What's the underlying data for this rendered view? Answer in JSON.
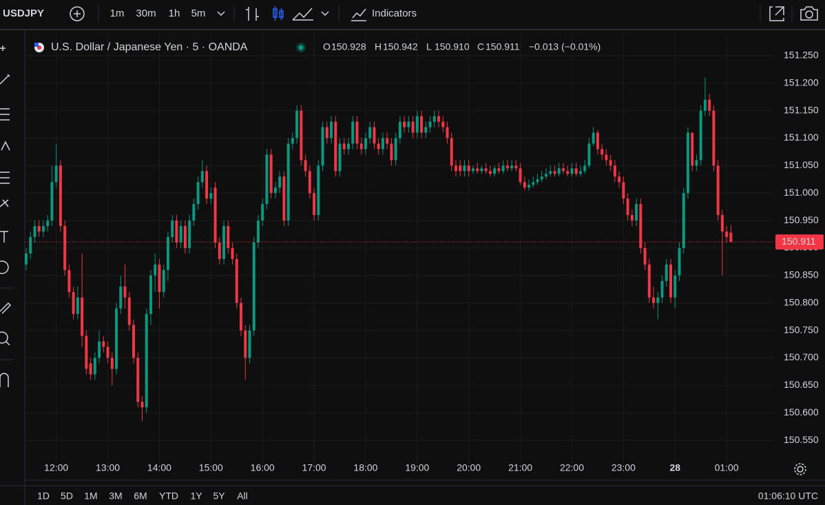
{
  "toolbar": {
    "symbol": "USDJPY",
    "intervals": [
      "1m",
      "30m",
      "1h",
      "5m"
    ],
    "indicators": "Indicators"
  },
  "legend": {
    "title": "U.S. Dollar / Japanese Yen · 5 · OANDA",
    "ohlc": [
      {
        "letter": "O",
        "value": "150.928"
      },
      {
        "letter": "H",
        "value": "150.942"
      },
      {
        "letter": "L",
        "value": "150.910"
      },
      {
        "letter": "C",
        "value": "150.911"
      }
    ],
    "change": "−0.013 (−0.01%)"
  },
  "chart_data": {
    "type": "candlestick",
    "x": [
      "11:25",
      "11:30",
      "11:35",
      "11:40",
      "11:45",
      "11:50",
      "11:55",
      "12:00",
      "12:05",
      "12:10",
      "12:15",
      "12:20",
      "12:25",
      "12:30",
      "12:35",
      "12:40",
      "12:45",
      "12:50",
      "12:55",
      "13:00",
      "13:05",
      "13:10",
      "13:15",
      "13:20",
      "13:25",
      "13:30",
      "13:35",
      "13:40",
      "13:45",
      "13:50",
      "13:55",
      "14:00",
      "14:05",
      "14:10",
      "14:15",
      "14:20",
      "14:25",
      "14:30",
      "14:35",
      "14:40",
      "14:45",
      "14:50",
      "14:55",
      "15:00",
      "15:05",
      "15:10",
      "15:15",
      "15:20",
      "15:25",
      "15:30",
      "15:35",
      "15:40",
      "15:45",
      "15:50",
      "15:55",
      "16:00",
      "16:05",
      "16:10",
      "16:15",
      "16:20",
      "16:25",
      "16:30",
      "16:35",
      "16:40",
      "16:45",
      "16:50",
      "16:55",
      "17:00",
      "17:05",
      "17:10",
      "17:15",
      "17:20",
      "17:25",
      "17:30",
      "17:35",
      "17:40",
      "17:45",
      "17:50",
      "17:55",
      "18:00",
      "18:05",
      "18:10",
      "18:15",
      "18:20",
      "18:25",
      "18:30",
      "18:35",
      "18:40",
      "18:45",
      "18:50",
      "18:55",
      "19:00",
      "19:05",
      "19:10",
      "19:15",
      "19:20",
      "19:25",
      "19:30",
      "19:35",
      "19:40",
      "19:45",
      "19:50",
      "19:55",
      "20:00",
      "20:05",
      "20:10",
      "20:15",
      "20:20",
      "20:25",
      "20:30",
      "20:35",
      "20:40",
      "20:45",
      "20:50",
      "20:55",
      "21:00",
      "21:05",
      "21:10",
      "21:15",
      "21:20",
      "21:25",
      "21:30",
      "21:35",
      "21:40",
      "21:45",
      "21:50",
      "21:55",
      "22:00",
      "22:05",
      "22:10",
      "22:15",
      "22:20",
      "22:25",
      "22:30",
      "22:35",
      "22:40",
      "22:45",
      "22:50",
      "22:55",
      "23:00",
      "23:05",
      "23:10",
      "23:15",
      "23:20",
      "23:25",
      "23:30",
      "23:35",
      "23:40",
      "23:45",
      "23:50",
      "23:55",
      "00:00",
      "00:05",
      "00:10",
      "00:15",
      "00:20",
      "00:25",
      "00:30",
      "00:35",
      "00:40",
      "00:45",
      "00:50",
      "00:55",
      "01:00",
      "01:05"
    ],
    "open": [
      150.87,
      150.89,
      150.92,
      150.94,
      150.93,
      150.94,
      150.95,
      151.02,
      151.05,
      150.94,
      150.86,
      150.82,
      150.78,
      150.81,
      150.74,
      150.69,
      150.67,
      150.7,
      150.73,
      150.72,
      150.7,
      150.68,
      150.79,
      150.83,
      150.81,
      150.76,
      150.7,
      150.62,
      150.61,
      150.78,
      150.85,
      150.87,
      150.82,
      150.86,
      150.92,
      150.95,
      150.91,
      150.94,
      150.9,
      150.95,
      150.98,
      151.02,
      151.04,
      150.99,
      151.01,
      150.91,
      150.88,
      150.94,
      150.9,
      150.88,
      150.8,
      150.75,
      150.7,
      150.75,
      150.91,
      150.95,
      150.98,
      151.07,
      151.0,
      151.01,
      151.03,
      150.95,
      151.09,
      151.1,
      151.15,
      151.06,
      151.04,
      151.0,
      150.96,
      151.05,
      151.12,
      151.1,
      151.13,
      151.04,
      151.09,
      151.08,
      151.09,
      151.13,
      151.09,
      151.08,
      151.1,
      151.12,
      151.09,
      151.08,
      151.1,
      151.09,
      151.06,
      151.1,
      151.13,
      151.12,
      151.13,
      151.11,
      151.14,
      151.11,
      151.12,
      151.13,
      151.14,
      151.13,
      151.12,
      151.1,
      151.05,
      151.05,
      151.04,
      151.05,
      151.04,
      151.045,
      151.04,
      151.045,
      151.04,
      151.035,
      151.045,
      151.04,
      151.05,
      151.045,
      151.05,
      151.045,
      151.02,
      151.01,
      151.015,
      151.02,
      151.025,
      151.03,
      151.035,
      151.04,
      151.035,
      151.045,
      151.04,
      151.035,
      151.045,
      151.035,
      151.04,
      151.05,
      151.09,
      151.11,
      151.08,
      151.07,
      151.06,
      151.05,
      151.03,
      151.02,
      150.99,
      150.96,
      150.95,
      150.98,
      150.9,
      150.87,
      150.81,
      150.8,
      150.81,
      150.84,
      150.87,
      150.81,
      150.85,
      150.9,
      151.0,
      151.11,
      151.05,
      151.06,
      151.15,
      151.17,
      151.15,
      151.05,
      150.96,
      150.93,
      150.928
    ],
    "high": [
      150.9,
      150.93,
      150.95,
      150.95,
      150.95,
      150.96,
      151.05,
      151.09,
      151.06,
      150.95,
      150.87,
      150.83,
      150.83,
      150.89,
      150.75,
      150.7,
      150.71,
      150.75,
      150.74,
      150.73,
      150.71,
      150.8,
      150.85,
      150.87,
      150.82,
      150.77,
      150.71,
      150.63,
      150.79,
      150.86,
      150.89,
      150.88,
      150.87,
      150.93,
      150.96,
      150.96,
      150.95,
      150.95,
      150.96,
      150.99,
      151.03,
      151.06,
      151.05,
      151.01,
      151.02,
      150.92,
      150.95,
      150.95,
      150.91,
      150.89,
      150.81,
      150.76,
      150.76,
      150.92,
      150.96,
      150.99,
      151.08,
      151.08,
      151.02,
      151.04,
      151.04,
      151.1,
      151.11,
      151.16,
      151.16,
      151.07,
      151.05,
      151.01,
      151.06,
      151.13,
      151.13,
      151.14,
      151.14,
      151.1,
      151.1,
      151.1,
      151.14,
      151.14,
      151.1,
      151.11,
      151.13,
      151.13,
      151.1,
      151.11,
      151.11,
      151.1,
      151.11,
      151.14,
      151.14,
      151.14,
      151.14,
      151.15,
      151.15,
      151.13,
      151.14,
      151.15,
      151.15,
      151.14,
      151.13,
      151.11,
      151.06,
      151.06,
      151.06,
      151.06,
      151.05,
      151.055,
      151.05,
      151.055,
      151.05,
      151.05,
      151.055,
      151.06,
      151.06,
      151.06,
      151.06,
      151.055,
      151.03,
      151.025,
      151.03,
      151.035,
      151.04,
      151.045,
      151.05,
      151.05,
      151.055,
      151.055,
      151.05,
      151.055,
      151.055,
      151.05,
      151.06,
      151.1,
      151.12,
      151.115,
      151.09,
      151.08,
      151.07,
      151.06,
      151.04,
      151.03,
      151.0,
      150.97,
      150.99,
      150.99,
      150.91,
      150.88,
      150.83,
      150.82,
      150.85,
      150.88,
      150.88,
      150.86,
      150.91,
      151.01,
      151.12,
      151.11,
      151.07,
      151.16,
      151.21,
      151.18,
      151.16,
      151.06,
      150.97,
      150.94,
      150.942
    ],
    "low": [
      150.86,
      150.88,
      150.91,
      150.92,
      150.92,
      150.93,
      150.94,
      151.01,
      150.93,
      150.85,
      150.81,
      150.77,
      150.77,
      150.72,
      150.67,
      150.66,
      150.66,
      150.69,
      150.71,
      150.69,
      150.65,
      150.67,
      150.78,
      150.79,
      150.75,
      150.69,
      150.61,
      150.585,
      150.6,
      150.76,
      150.82,
      150.79,
      150.81,
      150.84,
      150.91,
      150.9,
      150.9,
      150.89,
      150.89,
      150.94,
      150.97,
      151.01,
      150.98,
      150.98,
      150.9,
      150.87,
      150.87,
      150.89,
      150.87,
      150.79,
      150.74,
      150.66,
      150.69,
      150.74,
      150.9,
      150.94,
      150.97,
      150.99,
      150.99,
      151.0,
      150.94,
      150.94,
      151.08,
      151.09,
      151.05,
      151.03,
      150.99,
      150.95,
      150.95,
      151.04,
      151.09,
      151.09,
      151.03,
      151.03,
      151.07,
      151.07,
      151.08,
      151.08,
      151.07,
      151.07,
      151.09,
      151.08,
      151.07,
      151.07,
      151.08,
      151.05,
      151.05,
      151.09,
      151.11,
      151.11,
      151.1,
      151.1,
      151.1,
      151.1,
      151.11,
      151.12,
      151.12,
      151.11,
      151.09,
      151.04,
      151.03,
      151.03,
      151.03,
      151.03,
      151.035,
      151.035,
      151.035,
      151.035,
      151.03,
      151.03,
      151.035,
      151.035,
      151.04,
      151.04,
      151.04,
      151.015,
      151.005,
      151.005,
      151.01,
      151.015,
      151.02,
      151.025,
      151.03,
      151.03,
      151.03,
      151.035,
      151.03,
      151.03,
      151.03,
      151.03,
      151.035,
      151.045,
      151.085,
      151.07,
      151.06,
      151.05,
      151.04,
      151.02,
      151.01,
      150.98,
      150.95,
      150.94,
      150.94,
      150.89,
      150.86,
      150.8,
      150.79,
      150.77,
      150.8,
      150.83,
      150.8,
      150.79,
      150.84,
      150.89,
      150.99,
      151.04,
      151.04,
      151.05,
      151.14,
      151.14,
      151.04,
      150.95,
      150.85,
      150.91,
      150.91
    ],
    "close": [
      150.89,
      150.92,
      150.94,
      150.93,
      150.94,
      150.95,
      151.02,
      151.05,
      150.94,
      150.86,
      150.82,
      150.78,
      150.81,
      150.74,
      150.68,
      150.67,
      150.7,
      150.73,
      150.72,
      150.7,
      150.68,
      150.79,
      150.83,
      150.81,
      150.76,
      150.7,
      150.62,
      150.61,
      150.78,
      150.85,
      150.87,
      150.82,
      150.86,
      150.92,
      150.95,
      150.91,
      150.94,
      150.9,
      150.95,
      150.98,
      151.02,
      151.04,
      150.99,
      151.0,
      150.91,
      150.88,
      150.94,
      150.9,
      150.88,
      150.8,
      150.75,
      150.7,
      150.75,
      150.91,
      150.95,
      150.98,
      151.07,
      151.0,
      151.01,
      151.03,
      150.95,
      151.09,
      151.1,
      151.15,
      151.06,
      151.04,
      151.0,
      150.96,
      151.05,
      151.12,
      151.1,
      151.13,
      151.04,
      151.09,
      151.08,
      151.09,
      151.13,
      151.09,
      151.08,
      151.1,
      151.12,
      151.09,
      151.08,
      151.1,
      151.09,
      151.06,
      151.1,
      151.13,
      151.12,
      151.13,
      151.11,
      151.14,
      151.11,
      151.12,
      151.13,
      151.14,
      151.13,
      151.12,
      151.1,
      151.05,
      151.04,
      151.04,
      151.05,
      151.04,
      151.045,
      151.04,
      151.045,
      151.04,
      151.035,
      151.045,
      151.04,
      151.05,
      151.045,
      151.05,
      151.045,
      151.02,
      151.01,
      151.015,
      151.02,
      151.025,
      151.03,
      151.035,
      151.04,
      151.035,
      151.045,
      151.04,
      151.035,
      151.045,
      151.035,
      151.04,
      151.05,
      151.09,
      151.11,
      151.08,
      151.07,
      151.06,
      151.05,
      151.03,
      151.02,
      150.99,
      150.96,
      150.95,
      150.98,
      150.9,
      150.87,
      150.81,
      150.8,
      150.81,
      150.84,
      150.87,
      150.81,
      150.85,
      150.9,
      151.0,
      151.11,
      151.05,
      151.06,
      151.15,
      151.17,
      151.15,
      151.05,
      150.96,
      150.93,
      150.92,
      150.911
    ],
    "up_color": "#089981",
    "down_color": "#f23645",
    "ylim": [
      150.52,
      151.29
    ],
    "yticks": [
      {
        "value": 150.55,
        "label": "150.550"
      },
      {
        "value": 150.6,
        "label": "150.600"
      },
      {
        "value": 150.65,
        "label": "150.650"
      },
      {
        "value": 150.7,
        "label": "150.700"
      },
      {
        "value": 150.75,
        "label": "150.750"
      },
      {
        "value": 150.8,
        "label": "150.800"
      },
      {
        "value": 150.85,
        "label": "150.850"
      },
      {
        "value": 150.9,
        "label": "150.900"
      },
      {
        "value": 150.95,
        "label": "150.950"
      },
      {
        "value": 151.0,
        "label": "151.000"
      },
      {
        "value": 151.05,
        "label": "151.050"
      },
      {
        "value": 151.1,
        "label": "151.100"
      },
      {
        "value": 151.15,
        "label": "151.150"
      },
      {
        "value": 151.2,
        "label": "151.200"
      },
      {
        "value": 151.25,
        "label": "151.250"
      }
    ],
    "xticks": [
      "12:00",
      "13:00",
      "14:00",
      "15:00",
      "16:00",
      "17:00",
      "18:00",
      "19:00",
      "20:00",
      "21:00",
      "22:00",
      "23:00",
      {
        "value": "00:00",
        "label": "28"
      },
      "01:00"
    ],
    "last_price": {
      "value": 150.911,
      "label": "150.911"
    },
    "grid": true
  },
  "ranges": [
    "1D",
    "5D",
    "1M",
    "3M",
    "6M",
    "YTD",
    "1Y",
    "5Y",
    "All"
  ],
  "clock": "01:06:10 UTC"
}
